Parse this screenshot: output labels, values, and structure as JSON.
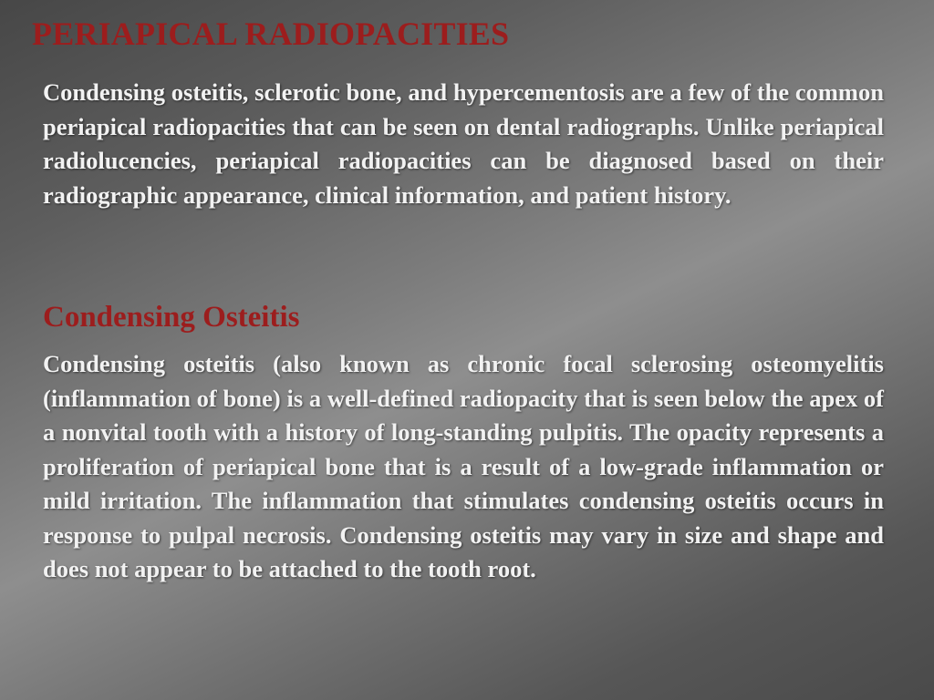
{
  "slide": {
    "title": "PERIAPICAL RADIOPACITIES",
    "intro": "Condensing osteitis, sclerotic bone, and hypercementosis are a few of the common periapical radiopacities that can be seen on dental radiographs. Unlike periapical radiolucencies, periapical radiopacities can be diagnosed based on their radiographic appearance, clinical information, and patient history.",
    "section": {
      "heading": "Condensing Osteitis",
      "body": "Condensing osteitis (also known as chronic focal sclerosing osteomyelitis (inflammation of bone) is a well-defined radiopacity that is seen below the apex of a nonvital tooth with a history of long-standing pulpitis. The opacity represents a proliferation of periapical bone that is a result of a low-grade inflammation or mild irritation. The inflammation that stimulates condensing osteitis occurs in response to pulpal necrosis. Condensing osteitis may vary in size and shape and does not appear to be attached to the tooth root."
    }
  }
}
